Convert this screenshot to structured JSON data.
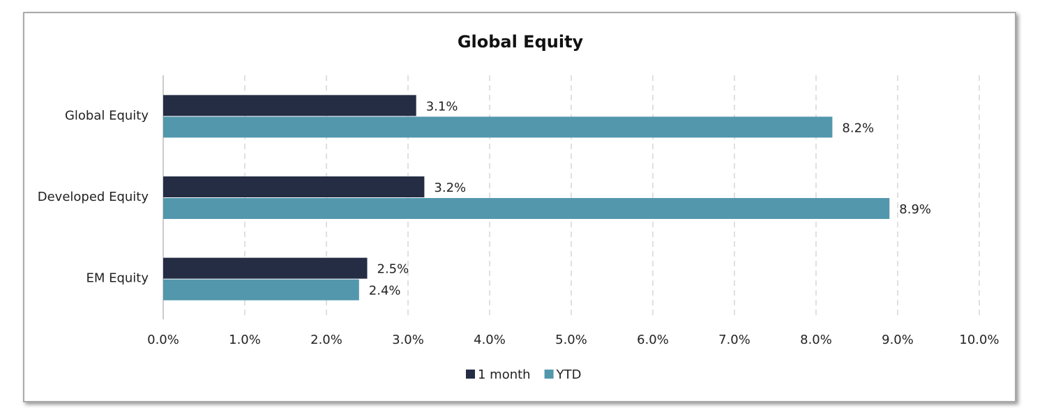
{
  "chart_data": {
    "type": "bar",
    "orientation": "horizontal",
    "title": "Global Equity",
    "categories": [
      "Global Equity",
      "Developed Equity",
      "EM Equity"
    ],
    "series": [
      {
        "name": "1 month",
        "color": "#252d45",
        "values": [
          3.1,
          3.2,
          2.5
        ],
        "value_labels": [
          "3.1%",
          "3.2%",
          "2.5%"
        ]
      },
      {
        "name": "YTD",
        "color": "#5397ad",
        "values": [
          8.2,
          8.9,
          2.4
        ],
        "value_labels": [
          "8.2%",
          "8.9%",
          "2.4%"
        ]
      }
    ],
    "xlim": [
      0,
      10
    ],
    "xticks": [
      {
        "value": 0,
        "label": "0.0%"
      },
      {
        "value": 1,
        "label": "1.0%"
      },
      {
        "value": 2,
        "label": "2.0%"
      },
      {
        "value": 3,
        "label": "3.0%"
      },
      {
        "value": 4,
        "label": "4.0%"
      },
      {
        "value": 5,
        "label": "5.0%"
      },
      {
        "value": 6,
        "label": "6.0%"
      },
      {
        "value": 7,
        "label": "7.0%"
      },
      {
        "value": 8,
        "label": "8.0%"
      },
      {
        "value": 9,
        "label": "9.0%"
      },
      {
        "value": 10,
        "label": "10.0%"
      }
    ],
    "grid": true,
    "legend": "bottom"
  }
}
